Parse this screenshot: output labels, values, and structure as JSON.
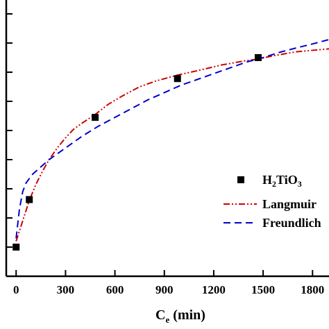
{
  "chart_data": {
    "type": "scatter",
    "xlabel_main": "C",
    "xlabel_sub": "e",
    "xlabel_unit": " (min)",
    "ylabel": "",
    "title": "",
    "xlim": [
      -60,
      1900
    ],
    "ylim": [
      0,
      1
    ],
    "x_ticks": [
      0,
      300,
      600,
      900,
      1200,
      1500,
      1800
    ],
    "x_tick_labels": [
      "0",
      "300",
      "600",
      "900",
      "1200",
      "1500",
      "1800"
    ],
    "y_ticks": [
      0.1,
      0.2,
      0.3,
      0.4,
      0.5,
      0.6,
      0.7,
      0.8
    ],
    "legend_position": "right",
    "series": [
      {
        "name_parts": [
          {
            "text": "H",
            "sub": false
          },
          {
            "text": "2",
            "sub": true
          },
          {
            "text": "TiO",
            "sub": false
          },
          {
            "text": "3",
            "sub": true
          }
        ],
        "kind": "markers",
        "color": "#000000",
        "x": [
          0,
          80,
          480,
          980,
          1470
        ],
        "y": [
          0.0,
          0.163,
          0.445,
          0.578,
          0.65
        ]
      },
      {
        "name": "Langmuir",
        "kind": "line",
        "dash": "dash-dot-dot",
        "color": "#cc0000",
        "x": [
          0,
          20,
          40,
          60,
          80,
          120,
          160,
          200,
          250,
          300,
          350,
          400,
          480,
          560,
          650,
          750,
          850,
          980,
          1100,
          1250,
          1400,
          1470,
          1550,
          1700,
          1900
        ],
        "y": [
          0.02,
          0.055,
          0.09,
          0.125,
          0.16,
          0.215,
          0.26,
          0.3,
          0.34,
          0.375,
          0.405,
          0.425,
          0.455,
          0.49,
          0.52,
          0.55,
          0.57,
          0.59,
          0.605,
          0.625,
          0.64,
          0.645,
          0.655,
          0.67,
          0.68
        ]
      },
      {
        "name": "Freundlich",
        "kind": "line",
        "dash": "dashed",
        "color": "#0000cc",
        "x": [
          0,
          20,
          40,
          60,
          80,
          100,
          150,
          200,
          250,
          300,
          400,
          500,
          600,
          700,
          800,
          900,
          1000,
          1100,
          1200,
          1300,
          1400,
          1500,
          1600,
          1700,
          1800,
          1900
        ],
        "y": [
          0.03,
          0.13,
          0.19,
          0.22,
          0.235,
          0.25,
          0.275,
          0.3,
          0.32,
          0.34,
          0.38,
          0.415,
          0.445,
          0.475,
          0.505,
          0.53,
          0.555,
          0.575,
          0.595,
          0.615,
          0.635,
          0.65,
          0.668,
          0.683,
          0.697,
          0.712
        ]
      }
    ]
  }
}
